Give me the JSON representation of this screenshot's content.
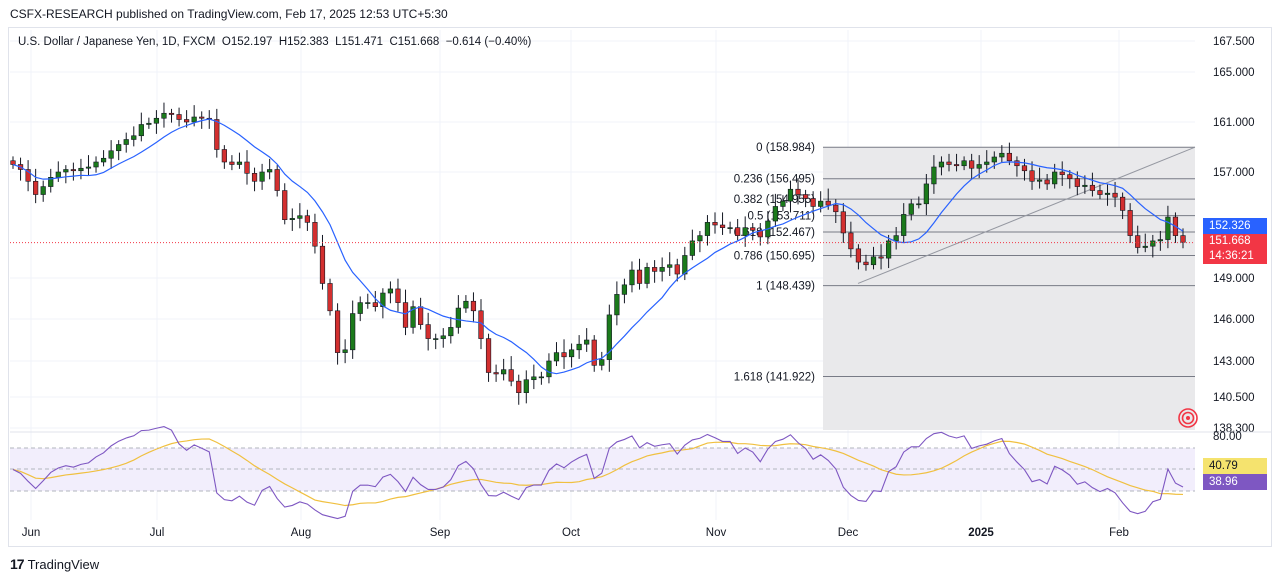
{
  "header": {
    "publisher": "CSFX-RESEARCH published on TradingView.com, Feb 17, 2025 12:53 UTC+5:30"
  },
  "legend": {
    "symbol": "U.S. Dollar / Japanese Yen, 1D, FXCM",
    "open": "O152.197",
    "high": "H152.383",
    "low": "L151.471",
    "close": "C151.668",
    "change": "−0.614 (−0.40%)"
  },
  "footer": {
    "brand": "TradingView",
    "logo_icon": "tradingview-logo-icon"
  },
  "price_tags": {
    "ma": "152.326",
    "last": "151.668",
    "countdown": "14:36:21",
    "rsi_ma": "40.79",
    "rsi": "38.96"
  },
  "colors": {
    "up": "#1b7a1b",
    "down": "#d32f2f",
    "ma_line": "#2962ff",
    "rsi_line": "#7e57c2",
    "rsi_ma": "#f0c040",
    "fib_zone": "#e9e9eb"
  },
  "chart_data": {
    "type": "candlestick",
    "y_axis": {
      "ticks": [
        "167.500",
        "165.000",
        "161.000",
        "157.000",
        "152.326",
        "151.668",
        "149.000",
        "146.000",
        "143.000",
        "140.500",
        "138.300"
      ],
      "range": [
        138.3,
        167.5
      ]
    },
    "x_axis": {
      "ticks": [
        "Jun",
        "Jul",
        "Aug",
        "Sep",
        "Oct",
        "Nov",
        "Dec",
        "2025",
        "Feb"
      ]
    },
    "fibonacci": {
      "levels": [
        {
          "label": "0 (158.984)",
          "value": 158.984
        },
        {
          "label": "0.236 (156.495)",
          "value": 156.495
        },
        {
          "label": "0.382 (154.955)",
          "value": 154.955
        },
        {
          "label": "0.5 (153.711)",
          "value": 153.711
        },
        {
          "label": "0.618 (152.467)",
          "value": 152.467
        },
        {
          "label": "0.786 (150.695)",
          "value": 150.695
        },
        {
          "label": "1 (148.439)",
          "value": 148.439
        },
        {
          "label": "1.618 (141.922)",
          "value": 141.922
        }
      ]
    },
    "closes": [
      157.6,
      157.2,
      156.3,
      155.3,
      155.9,
      156.6,
      157.0,
      157.2,
      157.1,
      157.3,
      157.4,
      157.8,
      158.1,
      158.7,
      159.2,
      159.6,
      159.9,
      160.8,
      160.9,
      161.3,
      161.7,
      161.6,
      161.2,
      161.0,
      161.4,
      161.3,
      161.2,
      158.8,
      157.8,
      157.6,
      157.8,
      156.9,
      156.3,
      157.0,
      157.2,
      155.6,
      153.4,
      153.5,
      153.7,
      153.2,
      151.4,
      148.6,
      146.6,
      143.6,
      143.8,
      146.4,
      147.2,
      147.2,
      146.9,
      147.9,
      148.2,
      147.2,
      145.4,
      146.9,
      145.6,
      144.6,
      144.6,
      144.8,
      145.4,
      146.8,
      147.3,
      146.6,
      144.6,
      142.2,
      142.1,
      142.4,
      141.6,
      140.8,
      141.7,
      141.9,
      141.9,
      143.0,
      143.6,
      143.3,
      143.8,
      144.2,
      144.5,
      142.7,
      143.1,
      146.3,
      147.8,
      148.5,
      149.6,
      148.6,
      149.8,
      149.5,
      149.8,
      150.0,
      149.3,
      150.7,
      151.8,
      152.2,
      153.2,
      153.0,
      152.8,
      152.8,
      152.2,
      152.8,
      152.6,
      152.1,
      153.3,
      154.4,
      154.8,
      155.7,
      155.3,
      155.0,
      154.4,
      154.8,
      154.5,
      154.0,
      152.4,
      151.2,
      150.2,
      150.0,
      150.6,
      150.5,
      151.8,
      152.2,
      153.8,
      154.6,
      154.6,
      156.1,
      157.4,
      157.8,
      157.6,
      157.5,
      157.9,
      157.3,
      157.6,
      157.8,
      158.2,
      158.5,
      157.9,
      157.5,
      157.1,
      156.3,
      156.4,
      156.1,
      157.0,
      156.8,
      156.5,
      155.9,
      156.0,
      155.6,
      155.3,
      155.4,
      155.1,
      154.1,
      152.2,
      151.3,
      151.4,
      151.8,
      151.9,
      153.6,
      152.2,
      151.7
    ]
  }
}
